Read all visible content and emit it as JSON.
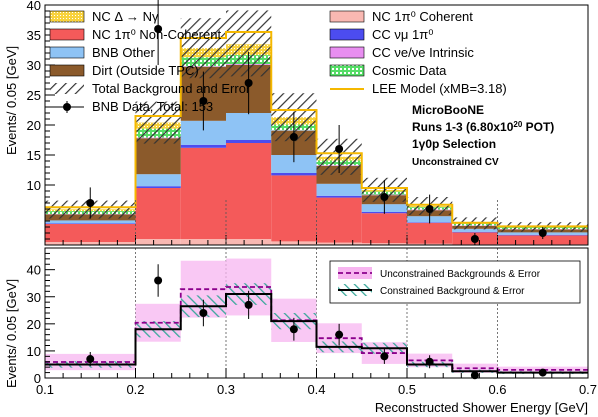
{
  "chart_data": [
    {
      "type": "bar",
      "panel": "top",
      "ylabel": "Events/ 0.05 [GeV]",
      "xlim": [
        0.1,
        0.7
      ],
      "ylim": [
        0,
        40
      ],
      "yticks": [
        10,
        15,
        20,
        25,
        30,
        35,
        40
      ],
      "bin_edges": [
        0.1,
        0.2,
        0.25,
        0.3,
        0.35,
        0.4,
        0.45,
        0.5,
        0.55,
        0.6,
        0.7
      ],
      "stack": [
        {
          "name": "NC 1π⁰ Coherent",
          "color": "#f9b8b2",
          "values": [
            0.5,
            1.0,
            1.0,
            1.0,
            0.6,
            0.4,
            0.3,
            0.2,
            0.1,
            0.1
          ]
        },
        {
          "name": "NC 1π⁰ Non-Coherent",
          "color": "#f45a5a",
          "values": [
            3.0,
            8.5,
            15.2,
            16.0,
            11.0,
            7.5,
            5.0,
            3.5,
            2.0,
            1.5
          ]
        },
        {
          "name": "CC νμ 1π⁰",
          "color": "#4c4cf0",
          "values": [
            0.1,
            0.3,
            0.5,
            0.5,
            0.4,
            0.3,
            0.2,
            0.1,
            0.1,
            0.1
          ]
        },
        {
          "name": "BNB Other",
          "color": "#8ec3f5",
          "values": [
            0.5,
            2.0,
            4.0,
            4.5,
            3.0,
            2.0,
            1.3,
            1.0,
            0.5,
            0.4
          ]
        },
        {
          "name": "Dirt (Outside TPC)",
          "color": "#8b5a2b",
          "values": [
            1.0,
            6.0,
            9.0,
            8.0,
            4.0,
            3.0,
            1.5,
            1.0,
            0.5,
            0.5
          ]
        },
        {
          "name": "CC νe/νe Intrinsic",
          "color": "#e88ef0",
          "values": [
            0.05,
            0.1,
            0.1,
            0.15,
            0.1,
            0.1,
            0.1,
            0.1,
            0.05,
            0.05
          ]
        },
        {
          "name": "Cosmic Data",
          "color": "#55dd66",
          "values": [
            0.5,
            1.5,
            1.5,
            1.5,
            1.0,
            0.8,
            0.5,
            0.4,
            0.3,
            0.3
          ]
        },
        {
          "name": "NC Δ → Nγ",
          "color": "#f8d23c",
          "values": [
            0.3,
            1.0,
            1.5,
            1.8,
            1.2,
            0.6,
            0.3,
            0.2,
            0.1,
            0.1
          ]
        }
      ],
      "total_background": [
        5.9,
        20.4,
        32.8,
        33.6,
        21.3,
        14.7,
        9.2,
        6.5,
        3.6,
        3.0
      ],
      "total_error": [
        1.5,
        3.5,
        5.0,
        5.5,
        4.0,
        3.0,
        2.0,
        1.5,
        1.0,
        0.8
      ],
      "lee_model": [
        6.3,
        21.5,
        34.5,
        35.5,
        22.5,
        15.3,
        9.5,
        6.7,
        3.7,
        3.1
      ],
      "data": [
        {
          "x": 0.15,
          "y": 7,
          "err": 2.6
        },
        {
          "x": 0.225,
          "y": 36,
          "err": 6.0
        },
        {
          "x": 0.275,
          "y": 24,
          "err": 4.9
        },
        {
          "x": 0.325,
          "y": 27,
          "err": 5.2
        },
        {
          "x": 0.375,
          "y": 18,
          "err": 4.2
        },
        {
          "x": 0.425,
          "y": 16,
          "err": 4.0
        },
        {
          "x": 0.475,
          "y": 8,
          "err": 2.8
        },
        {
          "x": 0.525,
          "y": 6,
          "err": 2.4
        },
        {
          "x": 0.575,
          "y": 1,
          "err": 1.0
        },
        {
          "x": 0.65,
          "y": 2,
          "err": 1.0
        }
      ],
      "legend_left": [
        {
          "label": "NC Δ → Nγ",
          "kind": "fill",
          "color": "#f8d23c"
        },
        {
          "label": "NC 1π⁰ Non-Coherent",
          "kind": "fill",
          "color": "#f45a5a"
        },
        {
          "label": "BNB Other",
          "kind": "fill",
          "color": "#8ec3f5"
        },
        {
          "label": "Dirt (Outside TPC)",
          "kind": "fill",
          "color": "#8b5a2b"
        },
        {
          "label": "Total Background and Error",
          "kind": "hatch",
          "color": "#333333"
        },
        {
          "label": "BNB Data, Total: 153",
          "kind": "marker",
          "color": "#000000"
        }
      ],
      "legend_right": [
        {
          "label": "NC 1π⁰ Coherent",
          "kind": "fill",
          "color": "#f9b8b2"
        },
        {
          "label": "CC νμ 1π⁰",
          "kind": "fill",
          "color": "#4c4cf0"
        },
        {
          "label": "CC νe/νe Intrinsic",
          "kind": "fill",
          "color": "#e88ef0"
        },
        {
          "label": "Cosmic Data",
          "kind": "fill",
          "color": "#55dd66"
        },
        {
          "label": "LEE Model (xMB=3.18)",
          "kind": "line",
          "color": "#f5b800"
        }
      ],
      "annotations": [
        "MicroBooNE",
        "Runs 1-3 (6.80x1020 POT)",
        "1γ0p Selection",
        "Unconstrained CV"
      ]
    },
    {
      "type": "line",
      "panel": "bottom",
      "xlabel": "Reconstructed Shower Energy [GeV]",
      "ylabel": "Events/ 0.05 [GeV]",
      "xlim": [
        0.1,
        0.7
      ],
      "ylim": [
        0,
        48
      ],
      "yticks": [
        0,
        10,
        20,
        30,
        40
      ],
      "xticks": [
        0.1,
        0.2,
        0.3,
        0.4,
        0.5,
        0.6,
        0.7
      ],
      "bin_edges": [
        0.1,
        0.2,
        0.25,
        0.3,
        0.35,
        0.4,
        0.45,
        0.5,
        0.55,
        0.6,
        0.7
      ],
      "series": [
        {
          "name": "Unconstrained Backgrounds & Error",
          "color": "#8b008b",
          "fill": "#f7b5f0",
          "values": [
            5.9,
            20.4,
            32.8,
            33.6,
            21.3,
            14.7,
            9.2,
            6.5,
            3.6,
            3.0
          ],
          "err": [
            3.0,
            7.0,
            10.5,
            10.5,
            8.0,
            5.5,
            4.0,
            2.5,
            1.7,
            1.2
          ]
        },
        {
          "name": "Constrained Background & Error",
          "color": "#000000",
          "fill": "#3aa89a",
          "values": [
            5.0,
            18.0,
            26.5,
            31.0,
            21.0,
            11.5,
            11.0,
            5.0,
            2.5,
            2.0
          ],
          "err": [
            1.2,
            3.0,
            4.0,
            4.0,
            3.0,
            2.0,
            2.0,
            1.0,
            0.6,
            0.5
          ]
        }
      ],
      "data": [
        {
          "x": 0.15,
          "y": 7,
          "err": 2.6
        },
        {
          "x": 0.225,
          "y": 36,
          "err": 6.0
        },
        {
          "x": 0.275,
          "y": 24,
          "err": 4.9
        },
        {
          "x": 0.325,
          "y": 27,
          "err": 5.2
        },
        {
          "x": 0.375,
          "y": 18,
          "err": 4.2
        },
        {
          "x": 0.425,
          "y": 16,
          "err": 4.0
        },
        {
          "x": 0.475,
          "y": 8,
          "err": 2.8
        },
        {
          "x": 0.525,
          "y": 6,
          "err": 2.4
        },
        {
          "x": 0.575,
          "y": 1,
          "err": 1.0
        },
        {
          "x": 0.65,
          "y": 2,
          "err": 1.0
        }
      ],
      "grid_x": [
        0.2,
        0.3,
        0.4,
        0.5,
        0.6
      ]
    }
  ]
}
